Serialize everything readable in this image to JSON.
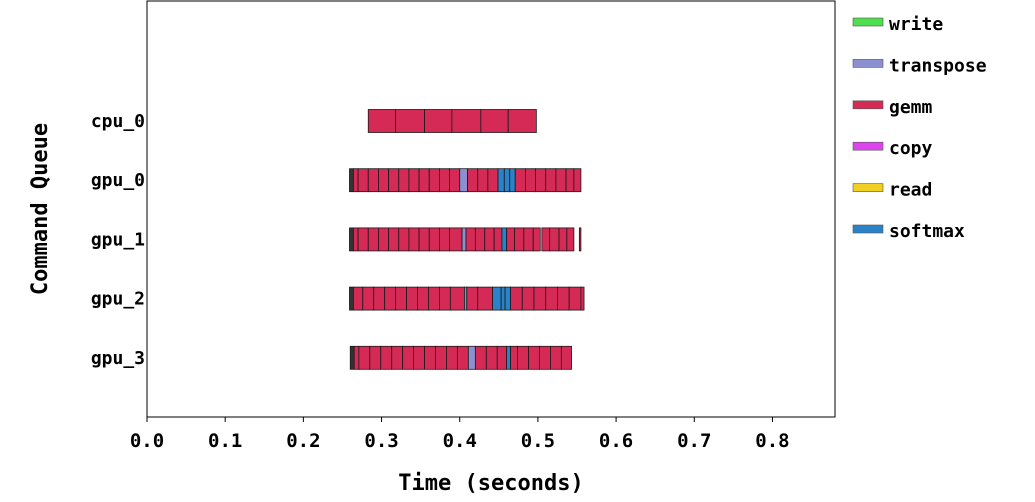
{
  "chart_data": {
    "type": "timeline",
    "xlabel": "Time (seconds)",
    "ylabel": "Command Queue",
    "xlim": [
      0.0,
      0.88
    ],
    "xticks": [
      "0.0",
      "0.1",
      "0.2",
      "0.3",
      "0.4",
      "0.5",
      "0.6",
      "0.7",
      "0.8"
    ],
    "grid": false,
    "legend_position": "right",
    "legend": [
      {
        "name": "write",
        "color": "#4ddf4d"
      },
      {
        "name": "transpose",
        "color": "#8c8fd0"
      },
      {
        "name": "gemm",
        "color": "#d42a55"
      },
      {
        "name": "copy",
        "color": "#dd44ee"
      },
      {
        "name": "read",
        "color": "#f0d020"
      },
      {
        "name": "softmax",
        "color": "#2b82c8"
      }
    ],
    "queues": [
      {
        "name": "cpu_0",
        "segments": [
          {
            "op": "gemm",
            "start": 0.283,
            "end": 0.318
          },
          {
            "op": "gemm",
            "start": 0.318,
            "end": 0.355
          },
          {
            "op": "gemm",
            "start": 0.355,
            "end": 0.39
          },
          {
            "op": "gemm",
            "start": 0.39,
            "end": 0.427
          },
          {
            "op": "gemm",
            "start": 0.427,
            "end": 0.462
          },
          {
            "op": "gemm",
            "start": 0.462,
            "end": 0.498
          }
        ]
      },
      {
        "name": "gpu_0",
        "segments": [
          {
            "op": "write",
            "start": 0.259,
            "end": 0.264
          },
          {
            "op": "gemm",
            "start": 0.264,
            "end": 0.27
          },
          {
            "op": "gemm",
            "start": 0.27,
            "end": 0.283
          },
          {
            "op": "gemm",
            "start": 0.283,
            "end": 0.296
          },
          {
            "op": "gemm",
            "start": 0.296,
            "end": 0.309
          },
          {
            "op": "gemm",
            "start": 0.309,
            "end": 0.322
          },
          {
            "op": "gemm",
            "start": 0.322,
            "end": 0.335
          },
          {
            "op": "gemm",
            "start": 0.335,
            "end": 0.348
          },
          {
            "op": "gemm",
            "start": 0.348,
            "end": 0.361
          },
          {
            "op": "gemm",
            "start": 0.361,
            "end": 0.374
          },
          {
            "op": "gemm",
            "start": 0.374,
            "end": 0.387
          },
          {
            "op": "gemm",
            "start": 0.387,
            "end": 0.4
          },
          {
            "op": "transpose",
            "start": 0.4,
            "end": 0.41
          },
          {
            "op": "gemm",
            "start": 0.41,
            "end": 0.423
          },
          {
            "op": "gemm",
            "start": 0.423,
            "end": 0.436
          },
          {
            "op": "gemm",
            "start": 0.436,
            "end": 0.449
          },
          {
            "op": "softmax",
            "start": 0.449,
            "end": 0.457
          },
          {
            "op": "softmax",
            "start": 0.457,
            "end": 0.464
          },
          {
            "op": "softmax",
            "start": 0.464,
            "end": 0.471
          },
          {
            "op": "gemm",
            "start": 0.471,
            "end": 0.484
          },
          {
            "op": "gemm",
            "start": 0.484,
            "end": 0.497
          },
          {
            "op": "gemm",
            "start": 0.497,
            "end": 0.51
          },
          {
            "op": "gemm",
            "start": 0.51,
            "end": 0.523
          },
          {
            "op": "gemm",
            "start": 0.523,
            "end": 0.536
          },
          {
            "op": "gemm",
            "start": 0.536,
            "end": 0.546
          },
          {
            "op": "gemm",
            "start": 0.546,
            "end": 0.555
          }
        ]
      },
      {
        "name": "gpu_1",
        "segments": [
          {
            "op": "write",
            "start": 0.259,
            "end": 0.264
          },
          {
            "op": "gemm",
            "start": 0.264,
            "end": 0.27
          },
          {
            "op": "gemm",
            "start": 0.27,
            "end": 0.283
          },
          {
            "op": "gemm",
            "start": 0.283,
            "end": 0.296
          },
          {
            "op": "gemm",
            "start": 0.296,
            "end": 0.309
          },
          {
            "op": "gemm",
            "start": 0.309,
            "end": 0.322
          },
          {
            "op": "gemm",
            "start": 0.322,
            "end": 0.335
          },
          {
            "op": "gemm",
            "start": 0.335,
            "end": 0.348
          },
          {
            "op": "gemm",
            "start": 0.348,
            "end": 0.361
          },
          {
            "op": "gemm",
            "start": 0.361,
            "end": 0.374
          },
          {
            "op": "gemm",
            "start": 0.374,
            "end": 0.387
          },
          {
            "op": "gemm",
            "start": 0.387,
            "end": 0.403
          },
          {
            "op": "transpose",
            "start": 0.403,
            "end": 0.408
          },
          {
            "op": "gemm",
            "start": 0.408,
            "end": 0.42
          },
          {
            "op": "gemm",
            "start": 0.42,
            "end": 0.432
          },
          {
            "op": "gemm",
            "start": 0.432,
            "end": 0.444
          },
          {
            "op": "gemm",
            "start": 0.444,
            "end": 0.454
          },
          {
            "op": "softmax",
            "start": 0.454,
            "end": 0.46
          },
          {
            "op": "gemm",
            "start": 0.46,
            "end": 0.47
          },
          {
            "op": "gemm",
            "start": 0.47,
            "end": 0.482
          },
          {
            "op": "gemm",
            "start": 0.482,
            "end": 0.494
          },
          {
            "op": "gemm",
            "start": 0.494,
            "end": 0.503
          },
          {
            "op": "gemm",
            "start": 0.505,
            "end": 0.515
          },
          {
            "op": "gemm",
            "start": 0.515,
            "end": 0.527
          },
          {
            "op": "gemm",
            "start": 0.527,
            "end": 0.537
          },
          {
            "op": "gemm",
            "start": 0.537,
            "end": 0.546
          },
          {
            "op": "gemm",
            "start": 0.553,
            "end": 0.555
          }
        ]
      },
      {
        "name": "gpu_2",
        "segments": [
          {
            "op": "write",
            "start": 0.259,
            "end": 0.264
          },
          {
            "op": "gemm",
            "start": 0.264,
            "end": 0.276
          },
          {
            "op": "gemm",
            "start": 0.276,
            "end": 0.29
          },
          {
            "op": "gemm",
            "start": 0.29,
            "end": 0.304
          },
          {
            "op": "gemm",
            "start": 0.304,
            "end": 0.318
          },
          {
            "op": "gemm",
            "start": 0.318,
            "end": 0.332
          },
          {
            "op": "gemm",
            "start": 0.332,
            "end": 0.346
          },
          {
            "op": "gemm",
            "start": 0.346,
            "end": 0.36
          },
          {
            "op": "gemm",
            "start": 0.36,
            "end": 0.374
          },
          {
            "op": "gemm",
            "start": 0.374,
            "end": 0.388
          },
          {
            "op": "gemm",
            "start": 0.388,
            "end": 0.406
          },
          {
            "op": "transpose",
            "start": 0.406,
            "end": 0.409
          },
          {
            "op": "gemm",
            "start": 0.409,
            "end": 0.423
          },
          {
            "op": "gemm",
            "start": 0.423,
            "end": 0.442
          },
          {
            "op": "softmax",
            "start": 0.442,
            "end": 0.453
          },
          {
            "op": "softmax",
            "start": 0.453,
            "end": 0.458
          },
          {
            "op": "softmax",
            "start": 0.458,
            "end": 0.465
          },
          {
            "op": "gemm",
            "start": 0.465,
            "end": 0.48
          },
          {
            "op": "gemm",
            "start": 0.48,
            "end": 0.495
          },
          {
            "op": "gemm",
            "start": 0.495,
            "end": 0.51
          },
          {
            "op": "gemm",
            "start": 0.51,
            "end": 0.525
          },
          {
            "op": "gemm",
            "start": 0.525,
            "end": 0.54
          },
          {
            "op": "gemm",
            "start": 0.54,
            "end": 0.555
          },
          {
            "op": "gemm",
            "start": 0.555,
            "end": 0.559
          }
        ]
      },
      {
        "name": "gpu_3",
        "segments": [
          {
            "op": "write",
            "start": 0.26,
            "end": 0.265
          },
          {
            "op": "gemm",
            "start": 0.265,
            "end": 0.271
          },
          {
            "op": "gemm",
            "start": 0.271,
            "end": 0.285
          },
          {
            "op": "gemm",
            "start": 0.285,
            "end": 0.299
          },
          {
            "op": "gemm",
            "start": 0.299,
            "end": 0.313
          },
          {
            "op": "gemm",
            "start": 0.313,
            "end": 0.327
          },
          {
            "op": "gemm",
            "start": 0.327,
            "end": 0.341
          },
          {
            "op": "gemm",
            "start": 0.341,
            "end": 0.355
          },
          {
            "op": "gemm",
            "start": 0.355,
            "end": 0.369
          },
          {
            "op": "gemm",
            "start": 0.369,
            "end": 0.383
          },
          {
            "op": "gemm",
            "start": 0.383,
            "end": 0.397
          },
          {
            "op": "gemm",
            "start": 0.397,
            "end": 0.411
          },
          {
            "op": "transpose",
            "start": 0.411,
            "end": 0.42
          },
          {
            "op": "gemm",
            "start": 0.42,
            "end": 0.434
          },
          {
            "op": "gemm",
            "start": 0.434,
            "end": 0.448
          },
          {
            "op": "gemm",
            "start": 0.448,
            "end": 0.46
          },
          {
            "op": "softmax",
            "start": 0.46,
            "end": 0.465
          },
          {
            "op": "gemm",
            "start": 0.465,
            "end": 0.474
          },
          {
            "op": "gemm",
            "start": 0.474,
            "end": 0.488
          },
          {
            "op": "gemm",
            "start": 0.488,
            "end": 0.502
          },
          {
            "op": "gemm",
            "start": 0.502,
            "end": 0.516
          },
          {
            "op": "gemm",
            "start": 0.516,
            "end": 0.53
          },
          {
            "op": "gemm",
            "start": 0.53,
            "end": 0.543
          }
        ]
      }
    ]
  }
}
